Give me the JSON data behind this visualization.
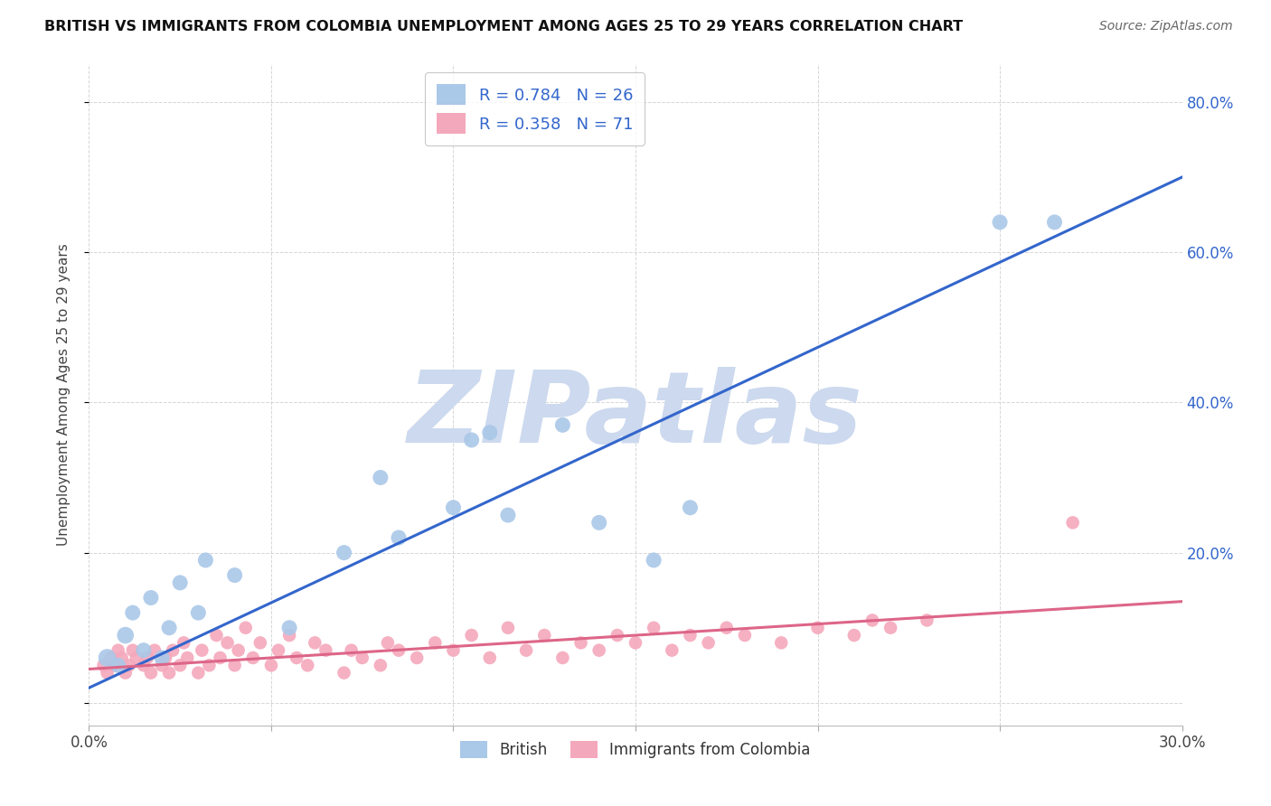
{
  "title": "BRITISH VS IMMIGRANTS FROM COLOMBIA UNEMPLOYMENT AMONG AGES 25 TO 29 YEARS CORRELATION CHART",
  "source": "Source: ZipAtlas.com",
  "ylabel": "Unemployment Among Ages 25 to 29 years",
  "xlim": [
    0.0,
    0.3
  ],
  "ylim": [
    -0.03,
    0.85
  ],
  "xticks": [
    0.0,
    0.05,
    0.1,
    0.15,
    0.2,
    0.25,
    0.3
  ],
  "xticklabels": [
    "0.0%",
    "",
    "",
    "",
    "",
    "",
    "30.0%"
  ],
  "yticks": [
    0.0,
    0.2,
    0.4,
    0.6,
    0.8
  ],
  "yticklabels_right": [
    "",
    "20.0%",
    "40.0%",
    "60.0%",
    "80.0%"
  ],
  "british_R": 0.784,
  "british_N": 26,
  "colombia_R": 0.358,
  "colombia_N": 71,
  "british_color": "#aac8e8",
  "colombia_color": "#f4a8bc",
  "british_line_color": "#3366cc",
  "colombia_line_color": "#dd6688",
  "watermark": "ZIPatlas",
  "watermark_color": "#ccd9ee",
  "british_line_x": [
    0.0,
    0.3
  ],
  "british_line_y": [
    0.02,
    0.7
  ],
  "colombia_line_x": [
    0.0,
    0.3
  ],
  "colombia_line_y": [
    0.045,
    0.135
  ],
  "british_scatter_x": [
    0.005,
    0.008,
    0.01,
    0.012,
    0.015,
    0.017,
    0.02,
    0.022,
    0.025,
    0.03,
    0.032,
    0.04,
    0.055,
    0.07,
    0.08,
    0.085,
    0.1,
    0.105,
    0.11,
    0.115,
    0.13,
    0.14,
    0.155,
    0.165,
    0.25,
    0.265
  ],
  "british_scatter_y": [
    0.06,
    0.05,
    0.09,
    0.12,
    0.07,
    0.14,
    0.06,
    0.1,
    0.16,
    0.12,
    0.19,
    0.17,
    0.1,
    0.2,
    0.3,
    0.22,
    0.26,
    0.35,
    0.36,
    0.25,
    0.37,
    0.24,
    0.19,
    0.26,
    0.64,
    0.64
  ],
  "british_scatter_sizes": [
    200,
    150,
    180,
    150,
    150,
    150,
    150,
    150,
    150,
    150,
    150,
    150,
    150,
    150,
    150,
    150,
    150,
    150,
    150,
    150,
    150,
    150,
    150,
    150,
    150,
    150
  ],
  "colombia_scatter_x": [
    0.004,
    0.005,
    0.006,
    0.007,
    0.008,
    0.009,
    0.01,
    0.011,
    0.012,
    0.013,
    0.015,
    0.016,
    0.017,
    0.018,
    0.02,
    0.021,
    0.022,
    0.023,
    0.025,
    0.026,
    0.027,
    0.03,
    0.031,
    0.033,
    0.035,
    0.036,
    0.038,
    0.04,
    0.041,
    0.043,
    0.045,
    0.047,
    0.05,
    0.052,
    0.055,
    0.057,
    0.06,
    0.062,
    0.065,
    0.07,
    0.072,
    0.075,
    0.08,
    0.082,
    0.085,
    0.09,
    0.095,
    0.1,
    0.105,
    0.11,
    0.115,
    0.12,
    0.125,
    0.13,
    0.135,
    0.14,
    0.145,
    0.15,
    0.155,
    0.16,
    0.165,
    0.17,
    0.175,
    0.18,
    0.19,
    0.2,
    0.21,
    0.215,
    0.22,
    0.23,
    0.27
  ],
  "colombia_scatter_y": [
    0.05,
    0.04,
    0.06,
    0.05,
    0.07,
    0.06,
    0.04,
    0.05,
    0.07,
    0.06,
    0.05,
    0.06,
    0.04,
    0.07,
    0.05,
    0.06,
    0.04,
    0.07,
    0.05,
    0.08,
    0.06,
    0.04,
    0.07,
    0.05,
    0.09,
    0.06,
    0.08,
    0.05,
    0.07,
    0.1,
    0.06,
    0.08,
    0.05,
    0.07,
    0.09,
    0.06,
    0.05,
    0.08,
    0.07,
    0.04,
    0.07,
    0.06,
    0.05,
    0.08,
    0.07,
    0.06,
    0.08,
    0.07,
    0.09,
    0.06,
    0.1,
    0.07,
    0.09,
    0.06,
    0.08,
    0.07,
    0.09,
    0.08,
    0.1,
    0.07,
    0.09,
    0.08,
    0.1,
    0.09,
    0.08,
    0.1,
    0.09,
    0.11,
    0.1,
    0.11,
    0.24
  ],
  "colombia_scatter_sizes": [
    150,
    150,
    150,
    150,
    150,
    150,
    150,
    150,
    150,
    150,
    150,
    150,
    150,
    150,
    150,
    150,
    150,
    150,
    150,
    150,
    150,
    150,
    150,
    150,
    150,
    150,
    150,
    150,
    150,
    150,
    150,
    150,
    150,
    150,
    150,
    150,
    150,
    150,
    150,
    150,
    150,
    150,
    150,
    150,
    150,
    150,
    150,
    150,
    150,
    150,
    150,
    150,
    150,
    150,
    150,
    150,
    150,
    150,
    150,
    150,
    150,
    150,
    150,
    150,
    150,
    150,
    150,
    150,
    150,
    150,
    150
  ]
}
